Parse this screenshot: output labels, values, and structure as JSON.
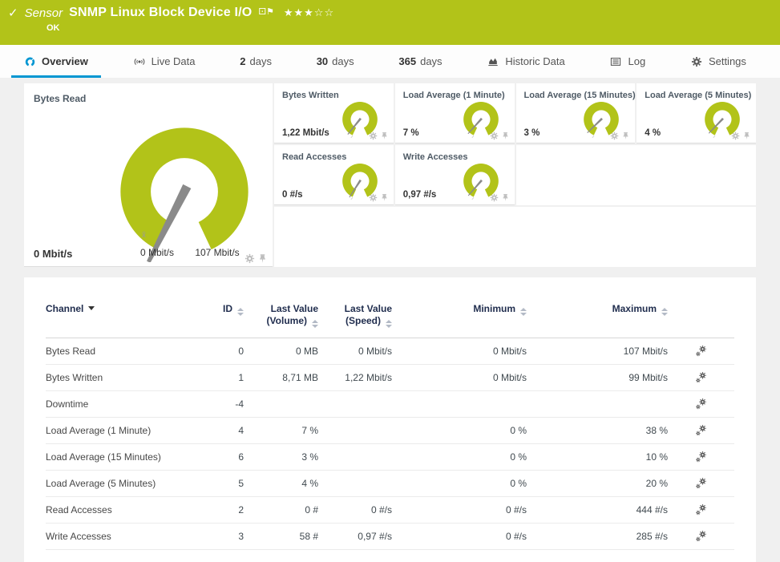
{
  "colors": {
    "accent_green": "#b2c319",
    "active_blue": "#0096d2",
    "header_text": "#1f2c4d",
    "needle_gray": "#8a8a8a",
    "icon_gray": "#bdbdbd",
    "page_bg": "#f0f0f0"
  },
  "header": {
    "status_icon": "check-icon",
    "kind_label": "Sensor",
    "title": "SNMP Linux Block Device I/O",
    "flag_icon": "flag-icon",
    "rating": {
      "filled": 3,
      "total": 5
    },
    "status_text": "OK"
  },
  "tabs": [
    {
      "id": "overview",
      "icon": "gauge-icon",
      "label": "Overview",
      "active": true
    },
    {
      "id": "live-data",
      "icon": "live-data-icon",
      "label": "Live Data",
      "active": false
    },
    {
      "id": "2-days",
      "prefix": "2",
      "label": "days",
      "active": false
    },
    {
      "id": "30-days",
      "prefix": "30",
      "label": "days",
      "active": false
    },
    {
      "id": "365-days",
      "prefix": "365",
      "label": "days",
      "active": false
    },
    {
      "id": "historic-data",
      "icon": "historic-data-icon",
      "label": "Historic Data",
      "active": false
    },
    {
      "id": "log",
      "icon": "log-icon",
      "label": "Log",
      "active": false
    },
    {
      "id": "settings",
      "icon": "gear-icon",
      "label": "Settings",
      "active": false
    }
  ],
  "gauges": {
    "card_icons": [
      "gear-icon",
      "pin-icon"
    ],
    "main": {
      "title": "Bytes Read",
      "value": "0 Mbit/s",
      "min_label": "0 Mbit/s",
      "max_label": "107 Mbit/s",
      "avg_marker": "x̄",
      "needle_deg": 117
    },
    "small": [
      {
        "key": "bytes-written",
        "title": "Bytes Written",
        "value": "1,22 Mbit/s",
        "needle_deg": 129
      },
      {
        "key": "load-average-1-minute",
        "title": "Load Average (1 Minute)",
        "value": "7 %",
        "needle_deg": 132
      },
      {
        "key": "load-average-15-minutes",
        "title": "Load Average (15 Minutes)",
        "value": "3 %",
        "needle_deg": 136
      },
      {
        "key": "load-average-5-minutes",
        "title": "Load Average (5 Minutes)",
        "value": "4 %",
        "needle_deg": 134
      },
      {
        "key": "read-accesses",
        "title": "Read Accesses",
        "value": "0 #/s",
        "needle_deg": 123
      },
      {
        "key": "write-accesses",
        "title": "Write Accesses",
        "value": "0,97 #/s",
        "needle_deg": 131
      }
    ]
  },
  "table": {
    "row_action_icon": "channel-settings-icon",
    "columns": [
      {
        "label": "Channel",
        "align": "left",
        "sort": "desc-active"
      },
      {
        "label": "ID",
        "align": "right",
        "sort": "both"
      },
      {
        "label": "Last Value",
        "label2": "(Volume)",
        "align": "right",
        "sort": "both"
      },
      {
        "label": "Last Value",
        "label2": "(Speed)",
        "align": "right",
        "sort": "both"
      },
      {
        "label": "Minimum",
        "align": "right",
        "sort": "both"
      },
      {
        "label": "Maximum",
        "align": "right",
        "sort": "both"
      },
      {
        "label": "",
        "align": "center",
        "sort": "none"
      }
    ],
    "rows": [
      {
        "channel": "Bytes Read",
        "id": "0",
        "volume": "0 MB",
        "speed": "0 Mbit/s",
        "min": "0 Mbit/s",
        "max": "107 Mbit/s"
      },
      {
        "channel": "Bytes Written",
        "id": "1",
        "volume": "8,71 MB",
        "speed": "1,22 Mbit/s",
        "min": "0 Mbit/s",
        "max": "99 Mbit/s"
      },
      {
        "channel": "Downtime",
        "id": "-4",
        "volume": "",
        "speed": "",
        "min": "",
        "max": ""
      },
      {
        "channel": "Load Average (1 Minute)",
        "id": "4",
        "volume": "7 %",
        "speed": "",
        "min": "0 %",
        "max": "38 %"
      },
      {
        "channel": "Load Average (15 Minutes)",
        "id": "6",
        "volume": "3 %",
        "speed": "",
        "min": "0 %",
        "max": "10 %"
      },
      {
        "channel": "Load Average (5 Minutes)",
        "id": "5",
        "volume": "4 %",
        "speed": "",
        "min": "0 %",
        "max": "20 %"
      },
      {
        "channel": "Read Accesses",
        "id": "2",
        "volume": "0 #",
        "speed": "0 #/s",
        "min": "0 #/s",
        "max": "444 #/s"
      },
      {
        "channel": "Write Accesses",
        "id": "3",
        "volume": "58 #",
        "speed": "0,97 #/s",
        "min": "0 #/s",
        "max": "285 #/s"
      }
    ]
  }
}
